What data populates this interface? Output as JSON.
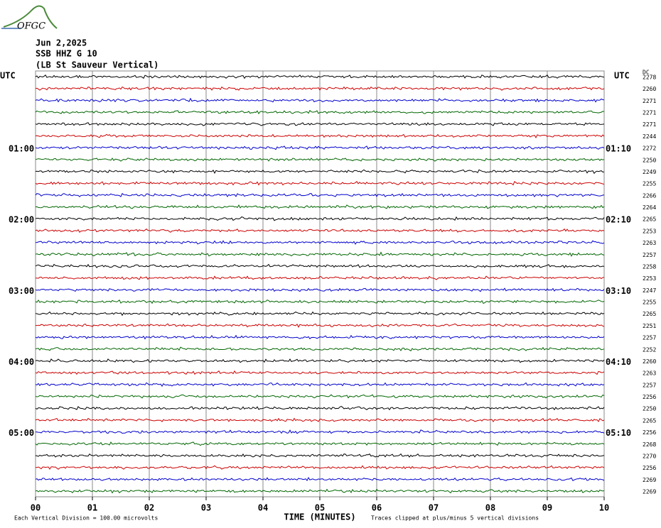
{
  "logo_text": "OFGC",
  "chart_data": {
    "type": "seismogram",
    "title_lines": [
      "Jun 2,2025",
      "SSB HHZ G 10",
      "(LB  St Sauveur Vertical)"
    ],
    "left_header": "UTC",
    "right_header": "UTC",
    "dc_header": "DC",
    "categories": [
      null,
      null,
      null,
      null,
      null,
      null,
      "01:00",
      null,
      null,
      null,
      null,
      null,
      "02:00",
      null,
      null,
      null,
      null,
      null,
      "03:00",
      null,
      null,
      null,
      null,
      null,
      "04:00",
      null,
      null,
      null,
      null,
      null,
      "05:00",
      null,
      null,
      null,
      null,
      null
    ],
    "right_labels": [
      null,
      null,
      null,
      null,
      null,
      null,
      "01:10",
      null,
      null,
      null,
      null,
      null,
      "02:10",
      null,
      null,
      null,
      null,
      null,
      "03:10",
      null,
      null,
      null,
      null,
      null,
      "04:10",
      null,
      null,
      null,
      null,
      null,
      "05:10",
      null,
      null,
      null,
      null,
      null
    ],
    "dc_values": [
      2278,
      2260,
      2271,
      2271,
      2271,
      2244,
      2272,
      2250,
      2249,
      2255,
      2266,
      2264,
      2265,
      2253,
      2263,
      2257,
      2258,
      2253,
      2247,
      2255,
      2265,
      2251,
      2257,
      2252,
      2260,
      2263,
      2257,
      2256,
      2250,
      2265,
      2256,
      2268,
      2270,
      2256,
      2269,
      2269
    ],
    "colors": [
      "#000000",
      "#cc0000",
      "#0000cc",
      "#006600"
    ],
    "xlabel": "TIME (MINUTES)",
    "xlim": [
      0,
      10
    ],
    "xticks": [
      {
        "value": 0,
        "label": "00"
      },
      {
        "value": 1,
        "label": "01"
      },
      {
        "value": 2,
        "label": "02"
      },
      {
        "value": 3,
        "label": "03"
      },
      {
        "value": 4,
        "label": "04"
      },
      {
        "value": 5,
        "label": "05"
      },
      {
        "value": 6,
        "label": "06"
      },
      {
        "value": 7,
        "label": "07"
      },
      {
        "value": 8,
        "label": "08"
      },
      {
        "value": 9,
        "label": "09"
      },
      {
        "value": 10,
        "label": "10"
      }
    ],
    "grid": true,
    "footer_left": "Each Vertical Division =  100.00 microvolts",
    "footer_right": "Traces clipped at plus/minus 5 vertical divisions"
  }
}
